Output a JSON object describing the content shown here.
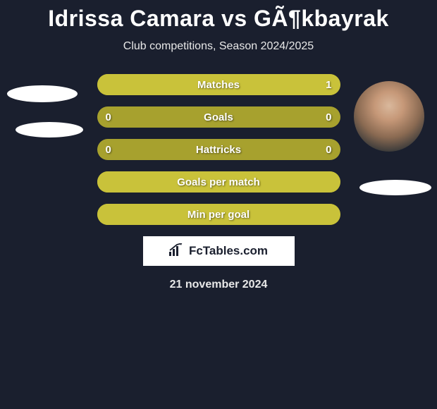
{
  "title": "Idrissa Camara vs GÃ¶kbayrak",
  "subtitle": "Club competitions, Season 2024/2025",
  "footer_date": "21 november 2024",
  "logo_text": "FcTables.com",
  "colors": {
    "background": "#1a1f2e",
    "bar_base": "#a7a12e",
    "bar_fill": "#c9c23a",
    "text": "#ffffff"
  },
  "bars": [
    {
      "label": "Matches",
      "left_value": "",
      "right_value": "1",
      "left_fill_pct": 0,
      "right_fill_pct": 100,
      "base_color": "#a7a12e",
      "left_color": "#a7a12e",
      "right_color": "#c9c23a"
    },
    {
      "label": "Goals",
      "left_value": "0",
      "right_value": "0",
      "left_fill_pct": 0,
      "right_fill_pct": 0,
      "base_color": "#a7a12e",
      "left_color": "#a7a12e",
      "right_color": "#a7a12e"
    },
    {
      "label": "Hattricks",
      "left_value": "0",
      "right_value": "0",
      "left_fill_pct": 0,
      "right_fill_pct": 0,
      "base_color": "#a7a12e",
      "left_color": "#a7a12e",
      "right_color": "#a7a12e"
    },
    {
      "label": "Goals per match",
      "left_value": "",
      "right_value": "",
      "left_fill_pct": 0,
      "right_fill_pct": 100,
      "base_color": "#a7a12e",
      "left_color": "#a7a12e",
      "right_color": "#c9c23a"
    },
    {
      "label": "Min per goal",
      "left_value": "",
      "right_value": "",
      "left_fill_pct": 0,
      "right_fill_pct": 100,
      "base_color": "#a7a12e",
      "left_color": "#a7a12e",
      "right_color": "#c9c23a"
    }
  ]
}
